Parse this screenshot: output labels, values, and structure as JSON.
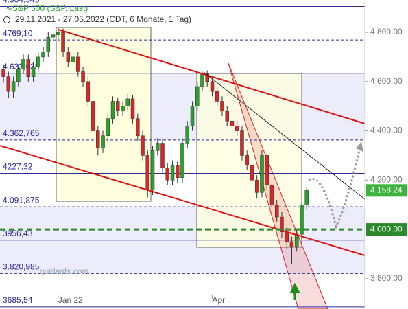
{
  "chart_data": {
    "type": "candlestick",
    "title": "S&P 500 (S&P, Last)",
    "subtitle": "29.11.2021 - 27.05.2022  (CDT, 6 Monate, 1 Tag)",
    "watermark": "guidants.com",
    "up_color": "#2ca02c",
    "down_color": "#d62728",
    "ylim": [
      3677,
      4931
    ],
    "yticks": [
      {
        "value": 4800,
        "label": "4.800,00"
      },
      {
        "value": 4600,
        "label": "4.600,00"
      },
      {
        "value": 4400,
        "label": "4.400,00"
      },
      {
        "value": 4200,
        "label": "4.200,00"
      },
      {
        "value": 3800,
        "label": "3.800,00"
      }
    ],
    "xlim": [
      -0.7,
      72.7
    ],
    "xticks": [
      {
        "value": 11,
        "label": "Jan 22"
      },
      {
        "value": 42,
        "label": "Apr"
      }
    ],
    "levels": [
      {
        "value": 4904.545,
        "label": "4.904,545"
      },
      {
        "value": 4769.1,
        "label": "4769,10"
      },
      {
        "value": 4633.635,
        "label": "4.633,635"
      },
      {
        "value": 4362.765,
        "label": "4.362,765"
      },
      {
        "value": 4227.32,
        "label": "4227,32"
      },
      {
        "value": 4091.875,
        "label": "4.091,875"
      },
      {
        "value": 3956.43,
        "label": "3956,43"
      },
      {
        "value": 3820.985,
        "label": "3.820,985"
      },
      {
        "value": 3685.54,
        "label": "3685,54"
      }
    ],
    "last_price": {
      "value": 4158.24,
      "label": "4.158,24"
    },
    "marker_line": {
      "value": 4000,
      "label": "4.000,00"
    },
    "open": [
      4650,
      4620,
      4560,
      4600,
      4650,
      4690,
      4620,
      4660,
      4700,
      4720,
      4780,
      4790,
      4800,
      4720,
      4680,
      4700,
      4640,
      4600,
      4520,
      4400,
      4330,
      4380,
      4450,
      4520,
      4480,
      4500,
      4530,
      4450,
      4380,
      4300,
      4160,
      4320,
      4350,
      4250,
      4200,
      4260,
      4210,
      4350,
      4420,
      4500,
      4580,
      4630,
      4600,
      4560,
      4520,
      4480,
      4440,
      4420,
      4400,
      4300,
      4260,
      4200,
      4150,
      4300,
      4180,
      4100,
      4050,
      3990,
      3950,
      3930,
      3980,
      4100
    ],
    "high": [
      4670,
      4640,
      4620,
      4670,
      4710,
      4710,
      4680,
      4720,
      4740,
      4800,
      4810,
      4820,
      4815,
      4740,
      4720,
      4720,
      4660,
      4620,
      4540,
      4420,
      4400,
      4470,
      4540,
      4535,
      4520,
      4550,
      4545,
      4470,
      4400,
      4320,
      4340,
      4370,
      4365,
      4270,
      4280,
      4275,
      4370,
      4440,
      4520,
      4600,
      4640,
      4645,
      4615,
      4580,
      4540,
      4500,
      4460,
      4440,
      4420,
      4320,
      4280,
      4220,
      4320,
      4310,
      4200,
      4120,
      4070,
      4010,
      3970,
      4000,
      4110,
      4170
    ],
    "low": [
      4595,
      4535,
      4535,
      4580,
      4630,
      4600,
      4600,
      4640,
      4680,
      4700,
      4760,
      4770,
      4700,
      4660,
      4660,
      4620,
      4580,
      4500,
      4375,
      4300,
      4310,
      4360,
      4430,
      4460,
      4460,
      4480,
      4430,
      4360,
      4280,
      4130,
      4140,
      4300,
      4230,
      4180,
      4180,
      4190,
      4190,
      4330,
      4400,
      4480,
      4560,
      4580,
      4540,
      4500,
      4460,
      4420,
      4400,
      4380,
      4280,
      4240,
      4180,
      4125,
      4130,
      4160,
      4080,
      4030,
      3965,
      3920,
      3860,
      3910,
      3960,
      4080
    ],
    "close": [
      4620,
      4560,
      4600,
      4650,
      4690,
      4620,
      4660,
      4700,
      4720,
      4780,
      4790,
      4800,
      4720,
      4680,
      4700,
      4640,
      4600,
      4520,
      4400,
      4330,
      4380,
      4450,
      4520,
      4480,
      4500,
      4530,
      4450,
      4380,
      4300,
      4160,
      4320,
      4350,
      4250,
      4200,
      4260,
      4210,
      4350,
      4420,
      4500,
      4580,
      4630,
      4600,
      4560,
      4520,
      4480,
      4440,
      4420,
      4400,
      4300,
      4260,
      4200,
      4150,
      4300,
      4180,
      4100,
      4050,
      3990,
      3950,
      3930,
      3980,
      4100,
      4158
    ]
  }
}
